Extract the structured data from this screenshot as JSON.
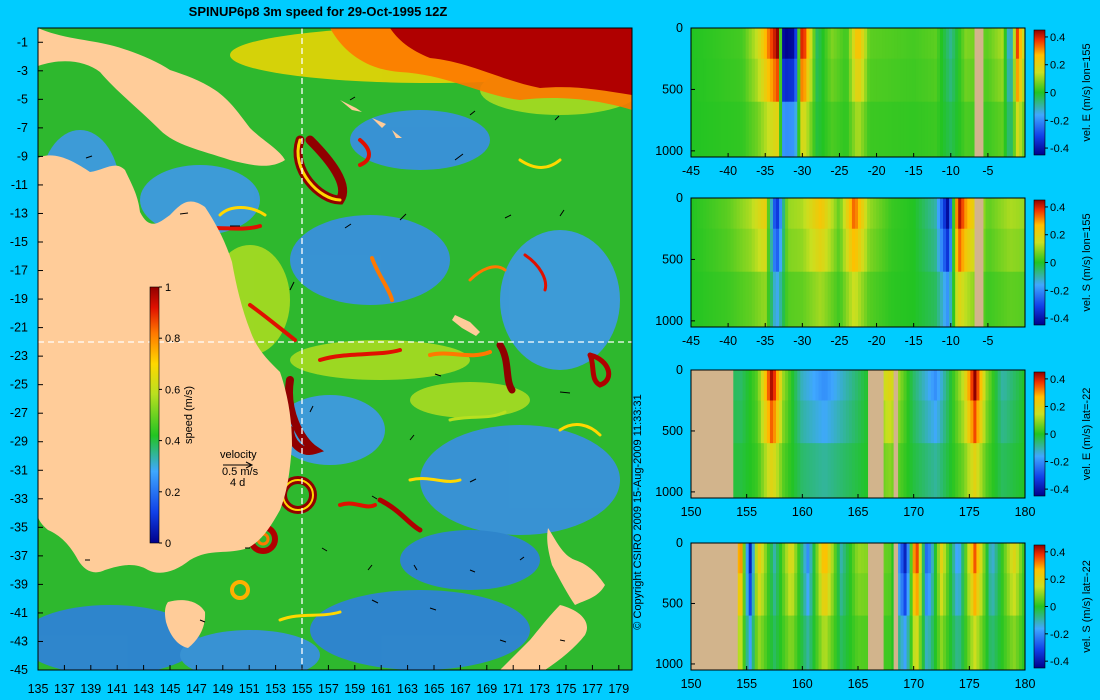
{
  "title": "SPINUP6p8 3m speed for 29-Oct-1995 12Z",
  "copyright": "© Copyright CSIRO 2009   15-Aug-2009 11:33:31",
  "chart_data": [
    {
      "type": "heatmap",
      "title": "SPINUP6p8 3m speed for 29-Oct-1995 12Z",
      "x_ticks": [
        "135",
        "137",
        "139",
        "141",
        "143",
        "145",
        "147",
        "149",
        "151",
        "153",
        "155",
        "157",
        "159",
        "161",
        "163",
        "165",
        "167",
        "169",
        "171",
        "173",
        "175",
        "177",
        "179"
      ],
      "y_ticks": [
        "-1",
        "-3",
        "-5",
        "-7",
        "-9",
        "-11",
        "-13",
        "-15",
        "-17",
        "-19",
        "-21",
        "-23",
        "-25",
        "-27",
        "-29",
        "-31",
        "-33",
        "-35",
        "-37",
        "-39",
        "-41",
        "-43",
        "-45"
      ],
      "xlim": [
        135,
        180
      ],
      "ylim": [
        -45,
        0
      ],
      "colorbar": {
        "label": "speed (m/s)",
        "ticks": [
          "1",
          "0.8",
          "0.6",
          "0.4",
          "0.2",
          "0"
        ],
        "range": [
          0,
          1
        ]
      },
      "velocity_key": {
        "title": "velocity",
        "speed": "0.5 m/s",
        "time": "4 d"
      },
      "section_lines": {
        "lon": 155,
        "lat": -22
      },
      "colors": {
        "land": "#ffcc99",
        "ocean_low": "#1e6fe6",
        "ocean_mid": "#22c422",
        "ocean_high": "#a00000"
      }
    },
    {
      "type": "heatmap",
      "colorbar_label": "vel. E (m/s) lon=155",
      "x_ticks": [
        "-45",
        "-40",
        "-35",
        "-30",
        "-25",
        "-20",
        "-15",
        "-10",
        "-5"
      ],
      "y_ticks": [
        "0",
        "500",
        "1000"
      ],
      "xlim": [
        -45,
        0
      ],
      "ylim": [
        1050,
        0
      ],
      "colorbar_ticks": [
        "0.4",
        "0.2",
        "0",
        "-0.2",
        "-0.4"
      ],
      "crange": [
        -0.45,
        0.45
      ],
      "land_bands": [
        [
          -6.8,
          -5.6
        ]
      ],
      "profile": [
        [
          -45,
          0
        ],
        [
          -38,
          0.03
        ],
        [
          -36,
          0.15
        ],
        [
          -34.5,
          0.33
        ],
        [
          -33.3,
          0.45
        ],
        [
          -32.5,
          -0.45
        ],
        [
          -31,
          -0.42
        ],
        [
          -30,
          0.45
        ],
        [
          -29.2,
          0.25
        ],
        [
          -28,
          -0.05
        ],
        [
          -26,
          0.08
        ],
        [
          -24,
          0.02
        ],
        [
          -22.5,
          0.28
        ],
        [
          -21,
          0.05
        ],
        [
          -18,
          0.04
        ],
        [
          -15,
          0.03
        ],
        [
          -12,
          0.05
        ],
        [
          -10,
          -0.08
        ],
        [
          -8,
          0.08
        ],
        [
          -5,
          0.05
        ],
        [
          -3,
          0.12
        ],
        [
          -2,
          -0.2
        ],
        [
          -1,
          0.38
        ],
        [
          0,
          0.1
        ]
      ]
    },
    {
      "type": "heatmap",
      "colorbar_label": "vel. S (m/s) lon=155",
      "x_ticks": [
        "-45",
        "-40",
        "-35",
        "-30",
        "-25",
        "-20",
        "-15",
        "-10",
        "-5"
      ],
      "y_ticks": [
        "0",
        "500",
        "1000"
      ],
      "xlim": [
        -45,
        0
      ],
      "ylim": [
        1050,
        0
      ],
      "colorbar_ticks": [
        "0.4",
        "0.2",
        "0",
        "-0.2",
        "-0.4"
      ],
      "crange": [
        -0.45,
        0.45
      ],
      "land_bands": [
        [
          -6.8,
          -5.6
        ]
      ],
      "profile": [
        [
          -45,
          0
        ],
        [
          -40,
          0.05
        ],
        [
          -37,
          0.12
        ],
        [
          -35,
          0.22
        ],
        [
          -33.5,
          -0.38
        ],
        [
          -32,
          0.1
        ],
        [
          -30,
          0.12
        ],
        [
          -27.5,
          0.25
        ],
        [
          -25,
          0.05
        ],
        [
          -23,
          0.35
        ],
        [
          -21,
          0.1
        ],
        [
          -18,
          0.02
        ],
        [
          -15,
          0.0
        ],
        [
          -12,
          -0.1
        ],
        [
          -10.3,
          -0.45
        ],
        [
          -9,
          0.45
        ],
        [
          -8,
          0.3
        ],
        [
          -5,
          0.05
        ],
        [
          -2,
          0.12
        ],
        [
          0,
          0.1
        ]
      ]
    },
    {
      "type": "heatmap",
      "colorbar_label": "vel. E (m/s) lat=-22",
      "x_ticks": [
        "150",
        "155",
        "160",
        "165",
        "170",
        "175",
        "180"
      ],
      "y_ticks": [
        "0",
        "500",
        "1000"
      ],
      "xlim": [
        150,
        180
      ],
      "ylim": [
        1050,
        0
      ],
      "colorbar_ticks": [
        "0.4",
        "0.2",
        "0",
        "-0.2",
        "-0.4"
      ],
      "crange": [
        -0.45,
        0.45
      ],
      "land_bands": [
        [
          150,
          153.8
        ],
        [
          165.9,
          167.3
        ],
        [
          168.2,
          168.6
        ]
      ],
      "profile": [
        [
          150,
          0
        ],
        [
          154.5,
          -0.05
        ],
        [
          156,
          0.05
        ],
        [
          157.3,
          0.45
        ],
        [
          158.3,
          0.1
        ],
        [
          160,
          -0.12
        ],
        [
          162,
          -0.2
        ],
        [
          164,
          -0.1
        ],
        [
          166,
          0.0
        ],
        [
          167.8,
          0.2
        ],
        [
          170,
          -0.05
        ],
        [
          172,
          -0.2
        ],
        [
          174.5,
          0.15
        ],
        [
          175.5,
          0.45
        ],
        [
          176.5,
          0.1
        ],
        [
          178,
          -0.1
        ],
        [
          180,
          0
        ]
      ]
    },
    {
      "type": "heatmap",
      "colorbar_label": "vel. S (m/s) lat=-22",
      "x_ticks": [
        "150",
        "155",
        "160",
        "165",
        "170",
        "175",
        "180"
      ],
      "y_ticks": [
        "0",
        "500",
        "1000"
      ],
      "xlim": [
        150,
        180
      ],
      "ylim": [
        1050,
        0
      ],
      "colorbar_ticks": [
        "0.4",
        "0.2",
        "0",
        "-0.2",
        "-0.4"
      ],
      "crange": [
        -0.45,
        0.45
      ],
      "land_bands": [
        [
          150,
          154.2
        ],
        [
          165.9,
          167.3
        ],
        [
          168.2,
          168.6
        ]
      ],
      "profile": [
        [
          150,
          0
        ],
        [
          154.5,
          0.3
        ],
        [
          155.3,
          -0.4
        ],
        [
          156,
          0.25
        ],
        [
          157.5,
          -0.1
        ],
        [
          159,
          0.2
        ],
        [
          160.5,
          -0.2
        ],
        [
          162,
          0.3
        ],
        [
          163.5,
          -0.1
        ],
        [
          165,
          0.1
        ],
        [
          168,
          0.05
        ],
        [
          169.3,
          -0.4
        ],
        [
          170.2,
          0.45
        ],
        [
          171.2,
          -0.3
        ],
        [
          172.5,
          0.2
        ],
        [
          174,
          -0.2
        ],
        [
          175.5,
          0.35
        ],
        [
          177,
          -0.15
        ],
        [
          179,
          0.2
        ],
        [
          180,
          0
        ]
      ]
    }
  ]
}
